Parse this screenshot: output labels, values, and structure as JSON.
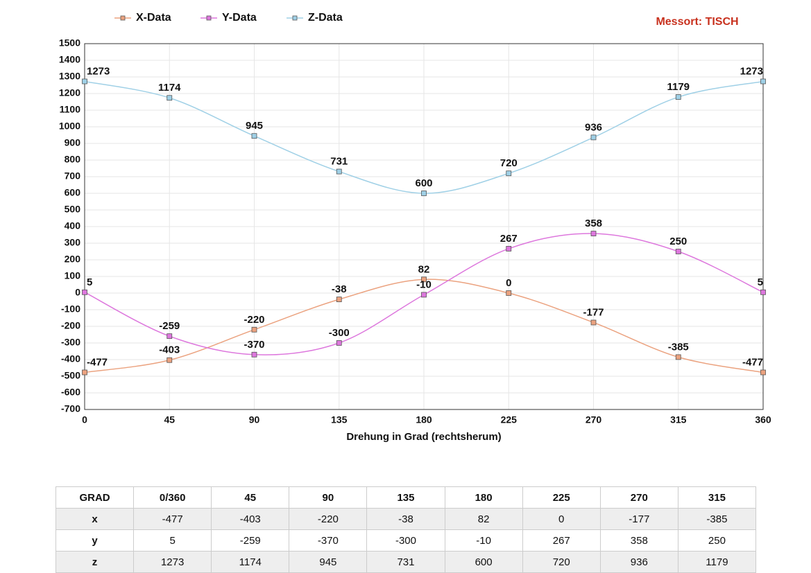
{
  "chart_data": {
    "type": "line",
    "annotation": "Messort: TISCH",
    "x_label": "Drehung in Grad (rechtsherum)",
    "x": [
      0,
      45,
      90,
      135,
      180,
      225,
      270,
      315,
      360
    ],
    "xlim": [
      0,
      360
    ],
    "xticks": [
      0,
      45,
      90,
      135,
      180,
      225,
      270,
      315,
      360
    ],
    "ylim": [
      -700,
      1500
    ],
    "yticks": [
      -700,
      -600,
      -500,
      -400,
      -300,
      -200,
      -100,
      0,
      100,
      200,
      300,
      400,
      500,
      600,
      700,
      800,
      900,
      1000,
      1100,
      1200,
      1300,
      1400,
      1500
    ],
    "grid": true,
    "series": [
      {
        "name": "X-Data",
        "color": "#eba27f",
        "values": [
          -477,
          -403,
          -220,
          -38,
          82,
          0,
          -177,
          -385,
          -477
        ]
      },
      {
        "name": "Y-Data",
        "color": "#dd77dd",
        "values": [
          5,
          -259,
          -370,
          -300,
          -10,
          267,
          358,
          250,
          5
        ]
      },
      {
        "name": "Z-Data",
        "color": "#9fd0e6",
        "values": [
          1273,
          1174,
          945,
          731,
          600,
          720,
          936,
          1179,
          1273
        ]
      }
    ]
  },
  "table": {
    "header": [
      "GRAD",
      "0/360",
      45,
      90,
      135,
      180,
      225,
      270,
      315
    ],
    "rows": [
      [
        "x",
        -477,
        -403,
        -220,
        -38,
        82,
        0,
        -177,
        -385
      ],
      [
        "y",
        5,
        -259,
        -370,
        -300,
        -10,
        267,
        358,
        250
      ],
      [
        "z",
        1273,
        1174,
        945,
        731,
        600,
        720,
        936,
        1179
      ]
    ]
  }
}
